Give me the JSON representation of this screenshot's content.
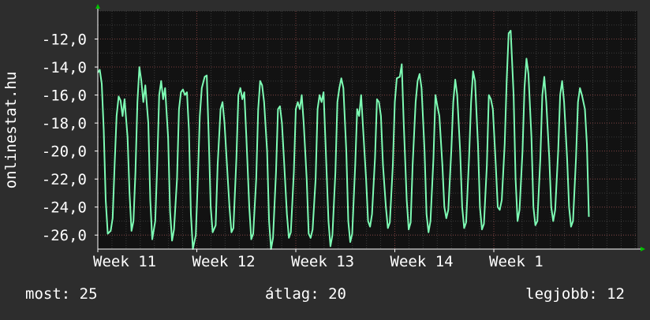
{
  "chart_data": {
    "type": "line",
    "ylabel": "onlinestat.hu",
    "xlabel": "",
    "title": "",
    "ylim": [
      -27.0,
      -10.0
    ],
    "yticks": [
      "-12,0",
      "-14,0",
      "-16,0",
      "-18,0",
      "-20,0",
      "-22,0",
      "-24,0",
      "-26,0"
    ],
    "ytick_values": [
      -12,
      -14,
      -16,
      -18,
      -20,
      -22,
      -24,
      -26
    ],
    "xlim": [
      10.0,
      15.45
    ],
    "xticks": [
      "Week 11",
      "Week 12",
      "Week 13",
      "Week 14",
      "Week 1"
    ],
    "xtick_values": [
      10.0,
      11.0,
      12.0,
      13.0,
      14.0
    ],
    "grid": true,
    "series": [
      {
        "color": "#7dfcb4",
        "points": [
          [
            10.0,
            -14.4
          ],
          [
            10.02,
            -14.2
          ],
          [
            10.04,
            -15.2
          ],
          [
            10.06,
            -18.5
          ],
          [
            10.08,
            -23.5
          ],
          [
            10.1,
            -25.9
          ],
          [
            10.13,
            -25.7
          ],
          [
            10.15,
            -24.8
          ],
          [
            10.17,
            -21.0
          ],
          [
            10.19,
            -17.5
          ],
          [
            10.21,
            -16.1
          ],
          [
            10.23,
            -16.4
          ],
          [
            10.25,
            -17.5
          ],
          [
            10.27,
            -16.3
          ],
          [
            10.3,
            -19.0
          ],
          [
            10.32,
            -23.0
          ],
          [
            10.34,
            -25.7
          ],
          [
            10.36,
            -25.0
          ],
          [
            10.38,
            -21.5
          ],
          [
            10.4,
            -16.5
          ],
          [
            10.42,
            -14.0
          ],
          [
            10.44,
            -15.0
          ],
          [
            10.46,
            -16.5
          ],
          [
            10.48,
            -15.3
          ],
          [
            10.51,
            -18.0
          ],
          [
            10.53,
            -23.5
          ],
          [
            10.55,
            -26.3
          ],
          [
            10.58,
            -25.0
          ],
          [
            10.6,
            -21.0
          ],
          [
            10.62,
            -16.0
          ],
          [
            10.64,
            -15.0
          ],
          [
            10.66,
            -16.3
          ],
          [
            10.68,
            -15.5
          ],
          [
            10.71,
            -19.0
          ],
          [
            10.73,
            -24.3
          ],
          [
            10.75,
            -26.4
          ],
          [
            10.77,
            -25.6
          ],
          [
            10.8,
            -22.0
          ],
          [
            10.82,
            -17.0
          ],
          [
            10.84,
            -15.8
          ],
          [
            10.86,
            -15.6
          ],
          [
            10.88,
            -16.0
          ],
          [
            10.9,
            -15.8
          ],
          [
            10.92,
            -18.5
          ],
          [
            10.94,
            -24.5
          ],
          [
            10.96,
            -27.0
          ],
          [
            10.99,
            -26.0
          ],
          [
            11.01,
            -22.0
          ],
          [
            11.03,
            -17.5
          ],
          [
            11.05,
            -15.5
          ],
          [
            11.08,
            -14.7
          ],
          [
            11.1,
            -14.6
          ],
          [
            11.12,
            -19.0
          ],
          [
            11.14,
            -24.0
          ],
          [
            11.16,
            -25.8
          ],
          [
            11.19,
            -25.3
          ],
          [
            11.21,
            -21.0
          ],
          [
            11.24,
            -17.0
          ],
          [
            11.26,
            -16.5
          ],
          [
            11.28,
            -18.0
          ],
          [
            11.3,
            -20.5
          ],
          [
            11.33,
            -24.0
          ],
          [
            11.35,
            -25.8
          ],
          [
            11.37,
            -25.5
          ],
          [
            11.4,
            -20.5
          ],
          [
            11.42,
            -16.0
          ],
          [
            11.44,
            -15.5
          ],
          [
            11.46,
            -16.3
          ],
          [
            11.48,
            -15.8
          ],
          [
            11.5,
            -19.0
          ],
          [
            11.53,
            -24.0
          ],
          [
            11.55,
            -26.3
          ],
          [
            11.57,
            -25.9
          ],
          [
            11.6,
            -22.0
          ],
          [
            11.62,
            -17.0
          ],
          [
            11.64,
            -15.0
          ],
          [
            11.66,
            -15.3
          ],
          [
            11.68,
            -16.5
          ],
          [
            11.71,
            -20.0
          ],
          [
            11.73,
            -25.0
          ],
          [
            11.75,
            -27.0
          ],
          [
            11.77,
            -26.2
          ],
          [
            11.8,
            -21.5
          ],
          [
            11.82,
            -17.0
          ],
          [
            11.84,
            -16.8
          ],
          [
            11.86,
            -18.0
          ],
          [
            11.88,
            -20.5
          ],
          [
            11.91,
            -24.5
          ],
          [
            11.93,
            -26.2
          ],
          [
            11.95,
            -25.8
          ],
          [
            11.98,
            -21.5
          ],
          [
            12.0,
            -17.0
          ],
          [
            12.02,
            -16.5
          ],
          [
            12.04,
            -17.0
          ],
          [
            12.06,
            -16.0
          ],
          [
            12.08,
            -18.0
          ],
          [
            12.11,
            -22.0
          ],
          [
            12.13,
            -25.9
          ],
          [
            12.15,
            -26.2
          ],
          [
            12.17,
            -25.6
          ],
          [
            12.2,
            -22.0
          ],
          [
            12.22,
            -17.0
          ],
          [
            12.24,
            -16.0
          ],
          [
            12.26,
            -16.5
          ],
          [
            12.28,
            -15.8
          ],
          [
            12.3,
            -19.5
          ],
          [
            12.33,
            -25.0
          ],
          [
            12.35,
            -26.8
          ],
          [
            12.37,
            -26.0
          ],
          [
            12.4,
            -21.5
          ],
          [
            12.42,
            -16.5
          ],
          [
            12.44,
            -15.5
          ],
          [
            12.46,
            -14.8
          ],
          [
            12.48,
            -15.5
          ],
          [
            12.51,
            -20.0
          ],
          [
            12.53,
            -25.0
          ],
          [
            12.55,
            -26.5
          ],
          [
            12.57,
            -25.9
          ],
          [
            12.6,
            -21.0
          ],
          [
            12.62,
            -17.0
          ],
          [
            12.64,
            -17.5
          ],
          [
            12.66,
            -16.0
          ],
          [
            12.68,
            -18.5
          ],
          [
            12.71,
            -22.0
          ],
          [
            12.73,
            -25.0
          ],
          [
            12.75,
            -25.4
          ],
          [
            12.77,
            -24.5
          ],
          [
            12.8,
            -20.5
          ],
          [
            12.82,
            -16.3
          ],
          [
            12.84,
            -16.5
          ],
          [
            12.86,
            -17.5
          ],
          [
            12.88,
            -21.0
          ],
          [
            12.91,
            -24.0
          ],
          [
            12.93,
            -25.5
          ],
          [
            12.95,
            -25.1
          ],
          [
            12.98,
            -21.0
          ],
          [
            13.0,
            -16.5
          ],
          [
            13.02,
            -14.8
          ],
          [
            13.05,
            -14.7
          ],
          [
            13.07,
            -13.8
          ],
          [
            13.09,
            -18.0
          ],
          [
            13.12,
            -23.5
          ],
          [
            13.14,
            -25.6
          ],
          [
            13.16,
            -25.1
          ],
          [
            13.18,
            -21.0
          ],
          [
            13.21,
            -16.5
          ],
          [
            13.23,
            -15.0
          ],
          [
            13.25,
            -14.5
          ],
          [
            13.27,
            -15.5
          ],
          [
            13.3,
            -20.0
          ],
          [
            13.32,
            -24.5
          ],
          [
            13.34,
            -25.8
          ],
          [
            13.36,
            -25.0
          ],
          [
            13.39,
            -20.5
          ],
          [
            13.41,
            -16.0
          ],
          [
            13.43,
            -16.8
          ],
          [
            13.45,
            -17.5
          ],
          [
            13.48,
            -21.0
          ],
          [
            13.5,
            -24.0
          ],
          [
            13.52,
            -24.8
          ],
          [
            13.54,
            -24.2
          ],
          [
            13.57,
            -20.0
          ],
          [
            13.59,
            -16.5
          ],
          [
            13.61,
            -14.9
          ],
          [
            13.63,
            -16.0
          ],
          [
            13.66,
            -20.0
          ],
          [
            13.68,
            -24.0
          ],
          [
            13.7,
            -25.5
          ],
          [
            13.72,
            -25.1
          ],
          [
            13.75,
            -20.5
          ],
          [
            13.77,
            -16.5
          ],
          [
            13.79,
            -14.3
          ],
          [
            13.81,
            -15.0
          ],
          [
            13.84,
            -19.5
          ],
          [
            13.86,
            -24.0
          ],
          [
            13.88,
            -25.6
          ],
          [
            13.9,
            -25.2
          ],
          [
            13.93,
            -21.0
          ],
          [
            13.95,
            -16.0
          ],
          [
            13.97,
            -16.3
          ],
          [
            13.99,
            -17.0
          ],
          [
            14.02,
            -21.0
          ],
          [
            14.04,
            -24.0
          ],
          [
            14.06,
            -24.2
          ],
          [
            14.08,
            -23.5
          ],
          [
            14.11,
            -19.5
          ],
          [
            14.13,
            -15.0
          ],
          [
            14.15,
            -11.6
          ],
          [
            14.17,
            -11.4
          ],
          [
            14.2,
            -16.0
          ],
          [
            14.22,
            -22.0
          ],
          [
            14.24,
            -25.0
          ],
          [
            14.26,
            -24.2
          ],
          [
            14.29,
            -20.0
          ],
          [
            14.31,
            -15.5
          ],
          [
            14.33,
            -13.4
          ],
          [
            14.35,
            -14.5
          ],
          [
            14.38,
            -19.0
          ],
          [
            14.4,
            -24.0
          ],
          [
            14.42,
            -25.3
          ],
          [
            14.44,
            -25.0
          ],
          [
            14.47,
            -20.5
          ],
          [
            14.49,
            -16.0
          ],
          [
            14.51,
            -14.7
          ],
          [
            14.53,
            -16.5
          ],
          [
            14.56,
            -20.5
          ],
          [
            14.58,
            -24.0
          ],
          [
            14.6,
            -25.0
          ],
          [
            14.62,
            -24.2
          ],
          [
            14.65,
            -20.0
          ],
          [
            14.67,
            -16.0
          ],
          [
            14.69,
            -15.0
          ],
          [
            14.71,
            -16.5
          ],
          [
            14.74,
            -20.5
          ],
          [
            14.76,
            -24.0
          ],
          [
            14.78,
            -25.4
          ],
          [
            14.8,
            -25.0
          ],
          [
            14.83,
            -20.5
          ],
          [
            14.85,
            -16.5
          ],
          [
            14.87,
            -15.5
          ],
          [
            14.89,
            -16.0
          ],
          [
            14.92,
            -17.0
          ],
          [
            14.94,
            -19.5
          ],
          [
            14.96,
            -24.7
          ]
        ]
      }
    ]
  },
  "footer": {
    "current": "most: 25",
    "average": "átlag: 20",
    "best": "legjobb: 12"
  },
  "colors": {
    "background": "#2d2d2d",
    "plot_background": "#121212",
    "grid_minor": "#3a3a3a",
    "grid_major": "#7a3f3f",
    "line": "#7dfcb4",
    "axis_arrow": "#00c000"
  }
}
